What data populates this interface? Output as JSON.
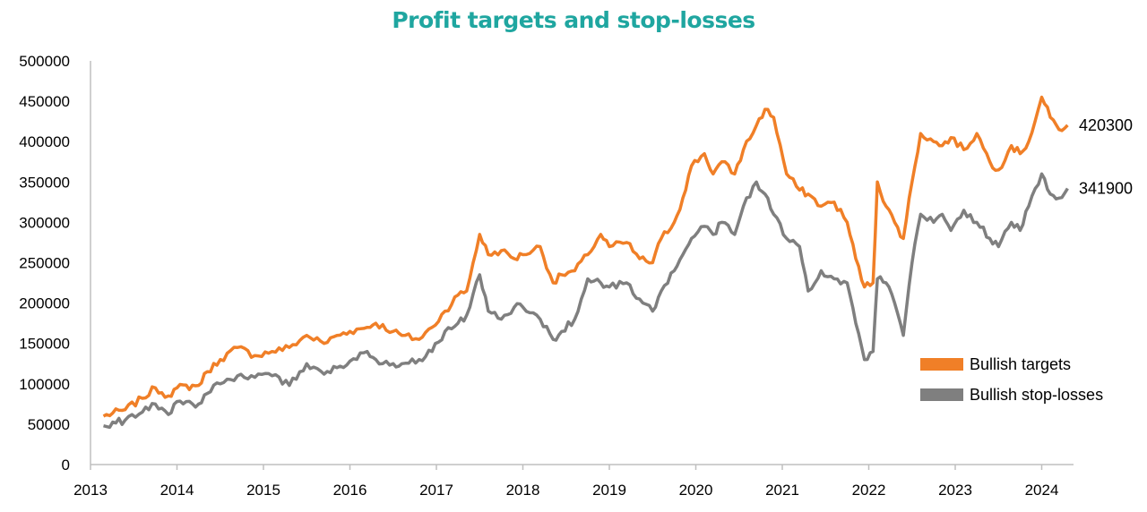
{
  "chart_data": {
    "type": "line",
    "title": "Profit targets and stop-losses",
    "xlabel": "",
    "ylabel": "",
    "xlim": [
      2013,
      2024.4
    ],
    "ylim": [
      0,
      500000
    ],
    "x_ticks": [
      "2013",
      "2014",
      "2015",
      "2016",
      "2017",
      "2018",
      "2019",
      "2020",
      "2021",
      "2022",
      "2023",
      "2024"
    ],
    "y_ticks": [
      "0",
      "50000",
      "100000",
      "150000",
      "200000",
      "250000",
      "300000",
      "350000",
      "400000",
      "450000",
      "500000"
    ],
    "grid": false,
    "legend_position": "bottom-right",
    "series": [
      {
        "name": "Bullish targets",
        "color": "#f07f27",
        "end_label": "420300",
        "x": [
          2013.15,
          2013.4,
          2013.6,
          2013.75,
          2013.9,
          2014.0,
          2014.25,
          2014.35,
          2014.5,
          2014.7,
          2014.9,
          2015.1,
          2015.3,
          2015.5,
          2015.7,
          2015.85,
          2016.0,
          2016.2,
          2016.3,
          2016.5,
          2016.6,
          2016.8,
          2016.95,
          2017.1,
          2017.25,
          2017.35,
          2017.5,
          2017.6,
          2017.75,
          2017.9,
          2018.0,
          2018.2,
          2018.35,
          2018.45,
          2018.6,
          2018.75,
          2018.9,
          2019.0,
          2019.2,
          2019.35,
          2019.5,
          2019.6,
          2019.75,
          2019.85,
          2019.95,
          2020.1,
          2020.2,
          2020.3,
          2020.45,
          2020.55,
          2020.7,
          2020.8,
          2020.9,
          2021.05,
          2021.2,
          2021.3,
          2021.45,
          2021.6,
          2021.75,
          2021.85,
          2021.95,
          2022.05,
          2022.1,
          2022.2,
          2022.3,
          2022.4,
          2022.5,
          2022.6,
          2022.75,
          2022.85,
          2022.95,
          2023.1,
          2023.25,
          2023.4,
          2023.5,
          2023.65,
          2023.75,
          2023.85,
          2024.0,
          2024.1,
          2024.2,
          2024.3
        ],
        "y": [
          60000,
          68000,
          82000,
          95000,
          85000,
          95000,
          98000,
          115000,
          130000,
          145000,
          135000,
          140000,
          145000,
          160000,
          150000,
          160000,
          165000,
          170000,
          175000,
          165000,
          160000,
          155000,
          170000,
          190000,
          210000,
          215000,
          285000,
          260000,
          265000,
          255000,
          260000,
          270000,
          225000,
          235000,
          240000,
          260000,
          285000,
          270000,
          275000,
          255000,
          250000,
          280000,
          300000,
          330000,
          370000,
          385000,
          360000,
          375000,
          360000,
          390000,
          420000,
          440000,
          430000,
          360000,
          340000,
          335000,
          320000,
          325000,
          300000,
          255000,
          220000,
          225000,
          350000,
          320000,
          300000,
          280000,
          350000,
          410000,
          400000,
          395000,
          405000,
          390000,
          410000,
          375000,
          365000,
          395000,
          385000,
          400000,
          455000,
          430000,
          415000,
          420300
        ]
      },
      {
        "name": "Bullish stop-losses",
        "color": "#7f7f7f",
        "end_label": "341900",
        "x": [
          2013.15,
          2013.4,
          2013.6,
          2013.75,
          2013.9,
          2014.0,
          2014.25,
          2014.35,
          2014.5,
          2014.7,
          2014.9,
          2015.1,
          2015.3,
          2015.5,
          2015.7,
          2015.85,
          2016.0,
          2016.2,
          2016.3,
          2016.5,
          2016.6,
          2016.8,
          2016.95,
          2017.1,
          2017.25,
          2017.35,
          2017.5,
          2017.6,
          2017.75,
          2017.9,
          2018.0,
          2018.2,
          2018.35,
          2018.45,
          2018.6,
          2018.75,
          2018.9,
          2019.0,
          2019.2,
          2019.35,
          2019.5,
          2019.6,
          2019.75,
          2019.85,
          2019.95,
          2020.1,
          2020.2,
          2020.3,
          2020.45,
          2020.55,
          2020.7,
          2020.8,
          2020.9,
          2021.05,
          2021.2,
          2021.3,
          2021.45,
          2021.6,
          2021.75,
          2021.85,
          2021.95,
          2022.05,
          2022.1,
          2022.2,
          2022.3,
          2022.4,
          2022.5,
          2022.6,
          2022.75,
          2022.85,
          2022.95,
          2023.1,
          2023.25,
          2023.4,
          2023.5,
          2023.65,
          2023.75,
          2023.85,
          2024.0,
          2024.1,
          2024.2,
          2024.3
        ],
        "y": [
          48000,
          55000,
          65000,
          75000,
          62000,
          78000,
          75000,
          88000,
          100000,
          110000,
          108000,
          110000,
          98000,
          125000,
          112000,
          120000,
          128000,
          140000,
          130000,
          125000,
          125000,
          130000,
          140000,
          165000,
          175000,
          185000,
          235000,
          190000,
          180000,
          195000,
          195000,
          180000,
          155000,
          165000,
          180000,
          230000,
          225000,
          220000,
          225000,
          205000,
          190000,
          215000,
          240000,
          260000,
          280000,
          295000,
          285000,
          300000,
          285000,
          320000,
          350000,
          335000,
          310000,
          280000,
          270000,
          215000,
          240000,
          230000,
          225000,
          175000,
          130000,
          140000,
          230000,
          225000,
          200000,
          160000,
          250000,
          310000,
          300000,
          310000,
          290000,
          315000,
          300000,
          280000,
          270000,
          300000,
          290000,
          320000,
          360000,
          335000,
          330000,
          341900
        ]
      }
    ]
  }
}
